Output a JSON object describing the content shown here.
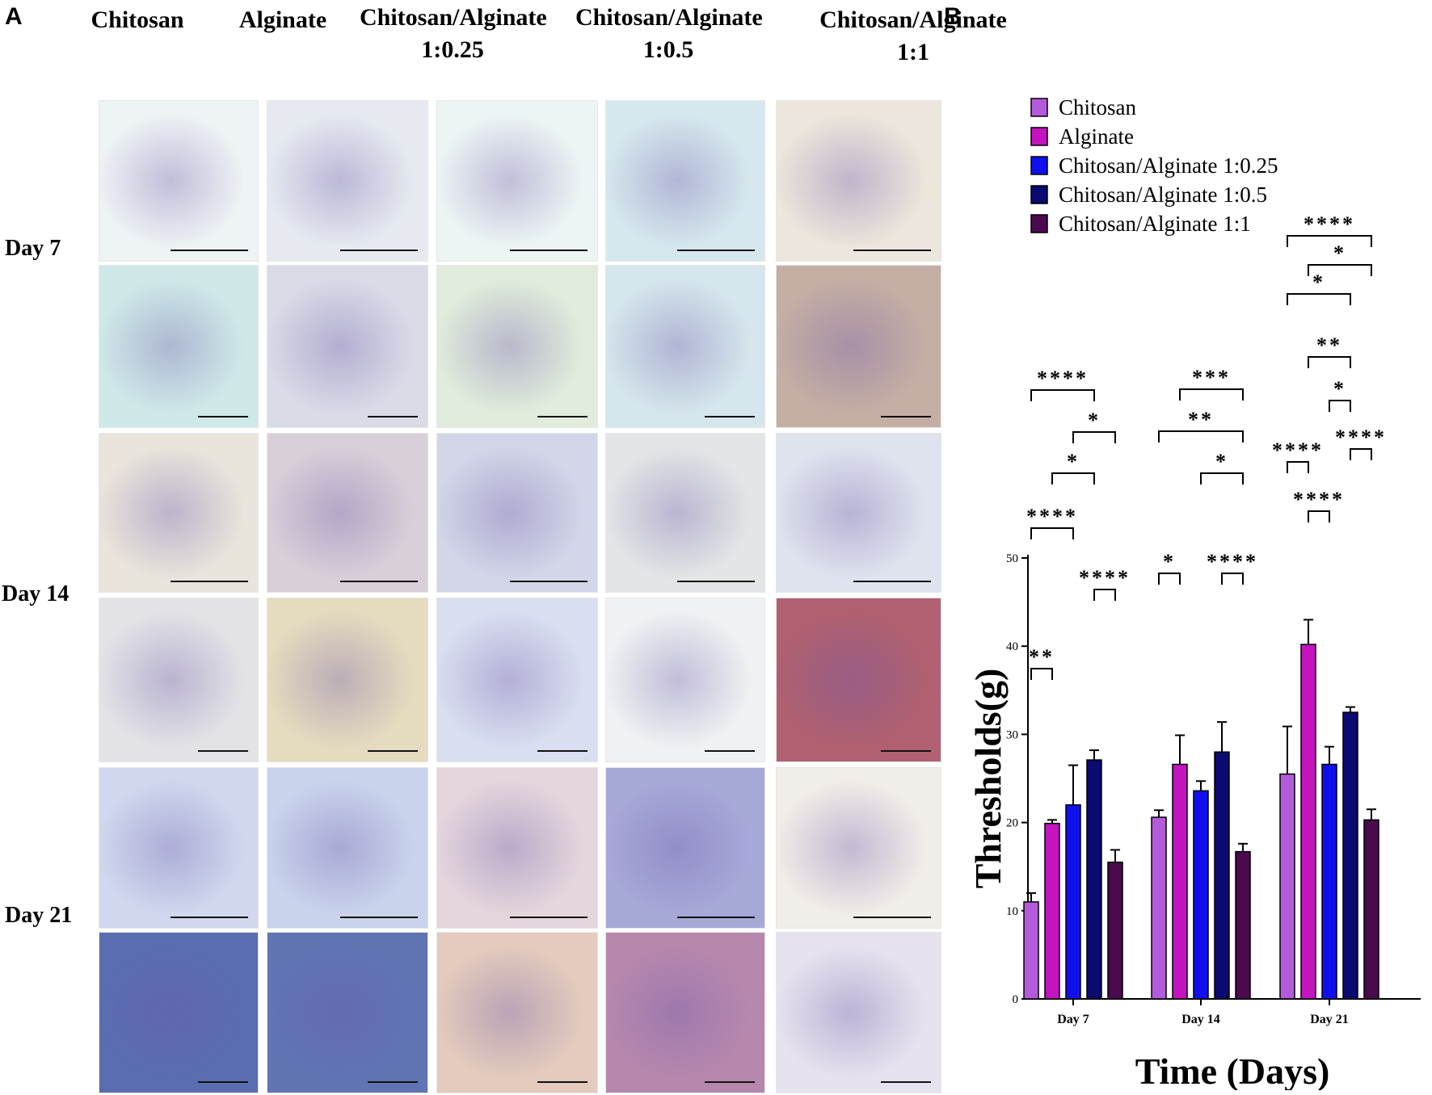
{
  "panels": {
    "a": "A",
    "b": "B"
  },
  "columns": [
    {
      "line1": "Chitosan",
      "line2": ""
    },
    {
      "line1": "Alginate",
      "line2": ""
    },
    {
      "line1": "Chitosan/Alginate",
      "line2": "1:0.25"
    },
    {
      "line1": "Chitosan/Alginate",
      "line2": "1:0.5"
    },
    {
      "line1": "Chitosan/Alginate",
      "line2": "1:1"
    }
  ],
  "rows": [
    "Day 7",
    "Day 14",
    "Day 21"
  ],
  "micrographs": [
    [
      "#eef3f4",
      "#e6eaf0",
      "#edf5f4",
      "#d6e8ee",
      "#ece6dc"
    ],
    [
      "#cfe9e8",
      "#d9dbe7",
      "#e1ecdc",
      "#d5e6ec",
      "#c5aea4"
    ],
    [
      "#e9e4dc",
      "#d9cfd8",
      "#d2d6e8",
      "#e3e6e6",
      "#dfe3ee"
    ],
    [
      "#e3e3e6",
      "#e5dbbf",
      "#d9def0",
      "#eef2f2",
      "#b06070"
    ],
    [
      "#cfd8ee",
      "#c9d3ec",
      "#e4d6dc",
      "#a7a9d8",
      "#f1ede8"
    ],
    [
      "#5a6db0",
      "#6074b4",
      "#e4cbbd",
      "#b788ae",
      "#e6e3ee"
    ]
  ],
  "chart_data": {
    "type": "bar",
    "categories": [
      "Day 7",
      "Day 14",
      "Day 21"
    ],
    "series": [
      {
        "name": "Chitosan",
        "color": "#b45bdb",
        "values": [
          11.0,
          20.6,
          25.5
        ],
        "errors": [
          1.0,
          0.8,
          5.4
        ]
      },
      {
        "name": "Alginate",
        "color": "#c314c0",
        "values": [
          19.9,
          26.6,
          40.2
        ],
        "errors": [
          0.4,
          3.3,
          2.8
        ]
      },
      {
        "name": "Chitosan/Alginate 1:0.25",
        "color": "#1010ee",
        "values": [
          22.0,
          23.6,
          26.6
        ],
        "errors": [
          4.5,
          1.1,
          2.0
        ]
      },
      {
        "name": "Chitosan/Alginate 1:0.5",
        "color": "#0a0a70",
        "values": [
          27.1,
          28.0,
          32.5
        ],
        "errors": [
          1.1,
          3.4,
          0.6
        ]
      },
      {
        "name": "Chitosan/Alginate 1:1",
        "color": "#4a0a4e",
        "values": [
          15.5,
          16.7,
          20.3
        ],
        "errors": [
          1.4,
          0.9,
          1.2
        ]
      }
    ],
    "xlabel": "Time (Days)",
    "ylabel": "Thresholds(g)",
    "ylim": [
      0,
      50
    ],
    "yticks": [
      0,
      10,
      20,
      30,
      40,
      50
    ],
    "legend_position": "top-left",
    "significance": [
      {
        "group": 0,
        "from": 0,
        "to": 1,
        "label": "**"
      },
      {
        "group": 0,
        "from": 0,
        "to": 2,
        "label": "****"
      },
      {
        "group": 0,
        "from": 1,
        "to": 3,
        "label": "*"
      },
      {
        "group": 0,
        "from": 3,
        "to": 4,
        "label": "****"
      },
      {
        "group": 0,
        "from": 2,
        "to": 4,
        "label": "*"
      },
      {
        "group": 0,
        "from": 0,
        "to": 3,
        "label": "****"
      },
      {
        "group": 1,
        "from": 0,
        "to": 1,
        "label": "*"
      },
      {
        "group": 1,
        "from": 3,
        "to": 4,
        "label": "****"
      },
      {
        "group": 1,
        "from": 2,
        "to": 4,
        "label": "*"
      },
      {
        "group": 1,
        "from": 0,
        "to": 4,
        "label": "**"
      },
      {
        "group": 1,
        "from": 1,
        "to": 4,
        "label": "***"
      },
      {
        "group": 2,
        "from": 1,
        "to": 2,
        "label": "****"
      },
      {
        "group": 2,
        "from": 0,
        "to": 1,
        "label": "****"
      },
      {
        "group": 2,
        "from": 3,
        "to": 4,
        "label": "****"
      },
      {
        "group": 2,
        "from": 2,
        "to": 3,
        "label": "*"
      },
      {
        "group": 2,
        "from": 1,
        "to": 3,
        "label": "**"
      },
      {
        "group": 2,
        "from": 0,
        "to": 3,
        "label": "*"
      },
      {
        "group": 2,
        "from": 1,
        "to": 4,
        "label": "*"
      },
      {
        "group": 2,
        "from": 0,
        "to": 4,
        "label": "****"
      }
    ]
  }
}
